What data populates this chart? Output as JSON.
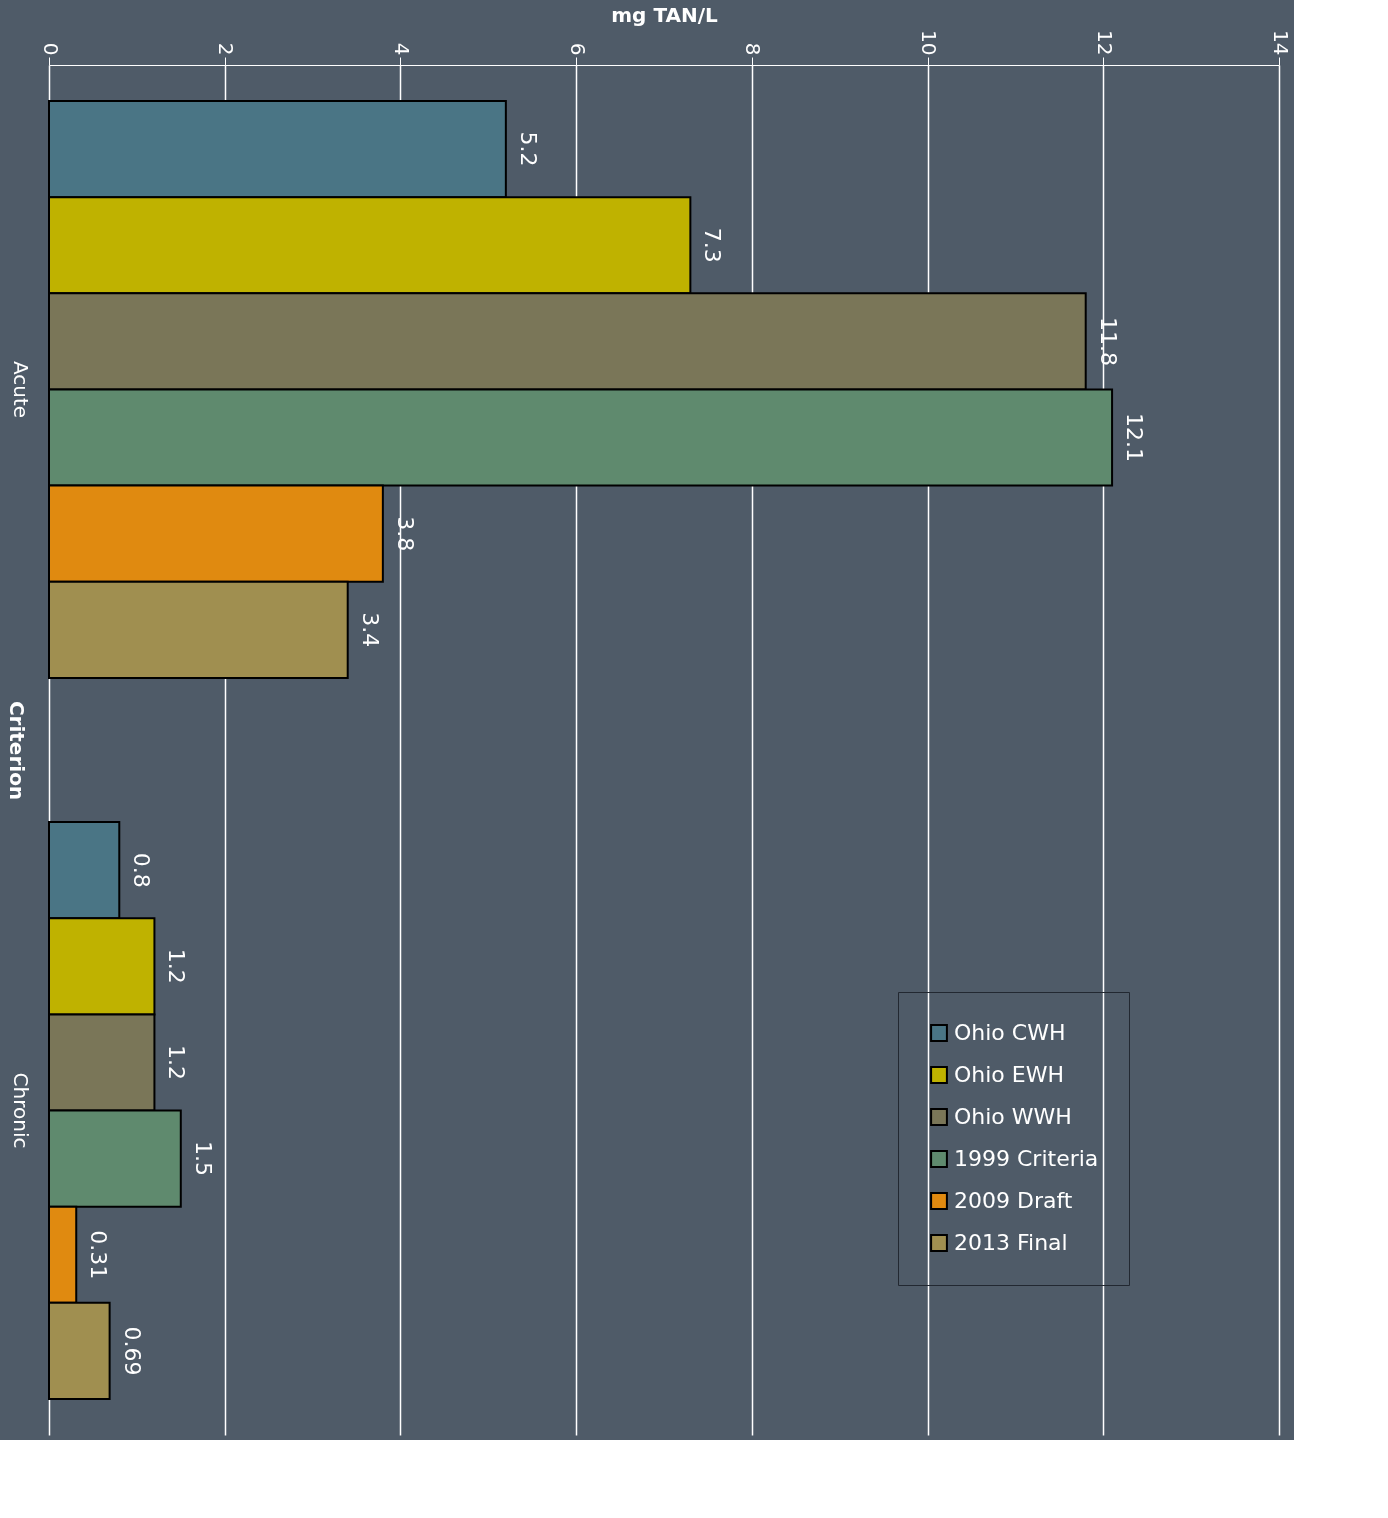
{
  "chart_data": {
    "type": "bar",
    "orientation": "horizontal",
    "xlabel": "mg TAN/L",
    "ylabel": "Criterion",
    "categories": [
      "Acute",
      "Chronic"
    ],
    "series": [
      {
        "name": "Ohio CWH",
        "color": "#4a7585",
        "values": [
          5.2,
          0.8
        ]
      },
      {
        "name": "Ohio EWH",
        "color": "#bfb200",
        "values": [
          7.3,
          1.2
        ]
      },
      {
        "name": "Ohio WWH",
        "color": "#7a7658",
        "values": [
          11.8,
          1.2
        ]
      },
      {
        "name": "1999 Criteria",
        "color": "#5f8a6e",
        "values": [
          12.1,
          1.5
        ]
      },
      {
        "name": "2009 Draft",
        "color": "#e08a10",
        "values": [
          3.8,
          0.31
        ]
      },
      {
        "name": "2013 Final",
        "color": "#a08f50",
        "values": [
          3.4,
          0.69
        ]
      }
    ],
    "xlim": [
      0,
      14
    ],
    "xticks": [
      0,
      2,
      4,
      6,
      8,
      10,
      12,
      14
    ],
    "grid": "x",
    "legend": "bottom right",
    "data_labels": true
  }
}
